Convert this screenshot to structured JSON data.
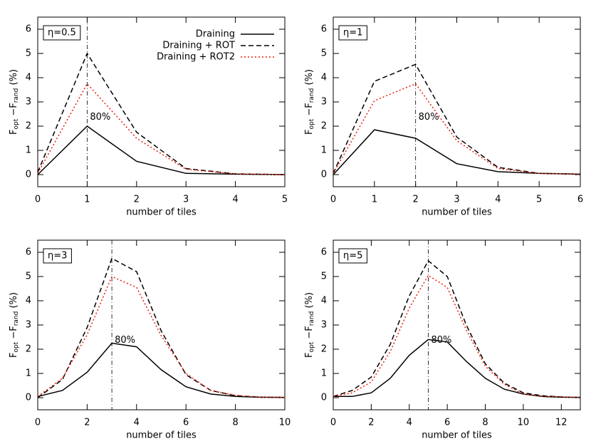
{
  "chart_data": [
    {
      "type": "line",
      "xlabel": "number of tiles",
      "ylabel": [
        "F",
        "opt",
        " −F",
        "rand",
        " (%)"
      ],
      "panel_label": "η=0.5",
      "vline": 1,
      "annotation": "80%",
      "legend": "upper right",
      "xlim": [
        0,
        5
      ],
      "xticks": [
        0,
        1,
        2,
        3,
        4,
        5
      ],
      "ylim": [
        -0.5,
        6.5
      ],
      "yticks": [
        0,
        1,
        2,
        3,
        4,
        5,
        6
      ],
      "x": [
        0,
        1,
        2,
        3,
        4,
        5
      ],
      "series": [
        {
          "name": "Draining",
          "color": "#000000",
          "dash": "solid",
          "values": [
            0.0,
            2.0,
            0.55,
            0.05,
            0.02,
            0.0
          ]
        },
        {
          "name": "Draining + ROT",
          "color": "#000000",
          "dash": "dashed",
          "values": [
            0.1,
            5.0,
            1.75,
            0.25,
            0.03,
            0.0
          ]
        },
        {
          "name": "Draining + ROT2",
          "color": "#e8200c",
          "dash": "dotted",
          "values": [
            0.05,
            3.75,
            1.5,
            0.22,
            0.03,
            0.0
          ]
        }
      ]
    },
    {
      "type": "line",
      "xlabel": "number of tiles",
      "ylabel": [
        "F",
        "opt",
        " −F",
        "rand",
        " (%)"
      ],
      "panel_label": "η=1",
      "vline": 2,
      "annotation": "80%",
      "xlim": [
        0,
        6
      ],
      "xticks": [
        0,
        1,
        2,
        3,
        4,
        5,
        6
      ],
      "ylim": [
        -0.5,
        6.5
      ],
      "yticks": [
        0,
        1,
        2,
        3,
        4,
        5,
        6
      ],
      "x": [
        0,
        1,
        2,
        3,
        4,
        5,
        6
      ],
      "series": [
        {
          "color": "#000000",
          "dash": "solid",
          "values": [
            0.0,
            1.85,
            1.5,
            0.45,
            0.12,
            0.05,
            0.02
          ]
        },
        {
          "color": "#000000",
          "dash": "dashed",
          "values": [
            0.05,
            3.85,
            4.55,
            1.55,
            0.3,
            0.05,
            0.02
          ]
        },
        {
          "color": "#e8200c",
          "dash": "dotted",
          "values": [
            0.05,
            3.05,
            3.75,
            1.4,
            0.25,
            0.05,
            0.02
          ]
        }
      ]
    },
    {
      "type": "line",
      "xlabel": "number of tiles",
      "ylabel": [
        "F",
        "opt",
        " −F",
        "rand",
        " (%)"
      ],
      "panel_label": "η=3",
      "vline": 3,
      "annotation": "80%",
      "xlim": [
        0,
        10
      ],
      "xticks": [
        0,
        2,
        4,
        6,
        8,
        10
      ],
      "ylim": [
        -0.5,
        6.5
      ],
      "yticks": [
        0,
        1,
        2,
        3,
        4,
        5,
        6
      ],
      "x": [
        0,
        1,
        2,
        3,
        4,
        5,
        6,
        7,
        8,
        9,
        10
      ],
      "series": [
        {
          "color": "#000000",
          "dash": "solid",
          "values": [
            0.05,
            0.3,
            1.05,
            2.25,
            2.1,
            1.15,
            0.45,
            0.15,
            0.05,
            0.02,
            0.01
          ]
        },
        {
          "color": "#000000",
          "dash": "dashed",
          "values": [
            0.0,
            0.75,
            2.9,
            5.75,
            5.2,
            2.75,
            0.95,
            0.3,
            0.08,
            0.02,
            0.01
          ]
        },
        {
          "color": "#e8200c",
          "dash": "dotted",
          "values": [
            0.05,
            0.8,
            2.6,
            5.0,
            4.55,
            2.55,
            1.0,
            0.3,
            0.1,
            0.02,
            0.01
          ]
        }
      ]
    },
    {
      "type": "line",
      "xlabel": "number of tiles",
      "ylabel": [
        "F",
        "opt",
        " −F",
        "rand",
        " (%)"
      ],
      "panel_label": "η=5",
      "vline": 5,
      "annotation": "80%",
      "xlim": [
        0,
        13
      ],
      "xticks": [
        0,
        2,
        4,
        6,
        8,
        10,
        12
      ],
      "ylim": [
        -0.5,
        6.5
      ],
      "yticks": [
        0,
        1,
        2,
        3,
        4,
        5,
        6
      ],
      "x": [
        0,
        1,
        2,
        3,
        4,
        5,
        6,
        7,
        8,
        9,
        10,
        11,
        12,
        13
      ],
      "series": [
        {
          "color": "#000000",
          "dash": "solid",
          "values": [
            0.05,
            0.05,
            0.2,
            0.8,
            1.75,
            2.4,
            2.3,
            1.5,
            0.8,
            0.35,
            0.15,
            0.05,
            0.02,
            0.01
          ]
        },
        {
          "color": "#000000",
          "dash": "dashed",
          "values": [
            0.05,
            0.3,
            0.85,
            2.2,
            4.2,
            5.65,
            5.0,
            3.0,
            1.4,
            0.6,
            0.2,
            0.08,
            0.03,
            0.01
          ]
        },
        {
          "color": "#e8200c",
          "dash": "dotted",
          "values": [
            0.05,
            0.2,
            0.65,
            1.9,
            3.7,
            5.05,
            4.55,
            2.8,
            1.3,
            0.55,
            0.15,
            0.06,
            0.03,
            0.01
          ]
        }
      ]
    }
  ]
}
